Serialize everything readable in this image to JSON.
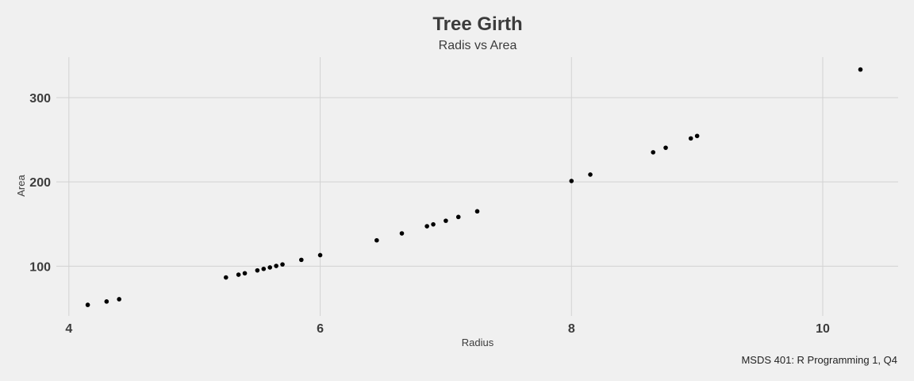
{
  "chart_data": {
    "type": "scatter",
    "title": "Tree Girth",
    "subtitle": "Radis vs Area",
    "xlabel": "Radius",
    "ylabel": "Area",
    "caption": "MSDS 401: R Programming 1, Q4",
    "xlim": [
      3.9,
      10.6
    ],
    "ylim": [
      41,
      348
    ],
    "x_ticks": [
      4,
      6,
      8,
      10
    ],
    "y_ticks": [
      100,
      200,
      300
    ],
    "grid": true,
    "point_color": "#000000",
    "points": [
      {
        "x": 4.15,
        "y": 54.1
      },
      {
        "x": 4.3,
        "y": 58.1
      },
      {
        "x": 4.4,
        "y": 60.8
      },
      {
        "x": 5.25,
        "y": 86.6
      },
      {
        "x": 5.35,
        "y": 89.9
      },
      {
        "x": 5.4,
        "y": 91.6
      },
      {
        "x": 5.5,
        "y": 95.0
      },
      {
        "x": 5.55,
        "y": 96.8
      },
      {
        "x": 5.6,
        "y": 98.5
      },
      {
        "x": 5.65,
        "y": 100.3
      },
      {
        "x": 5.7,
        "y": 102.1
      },
      {
        "x": 5.85,
        "y": 107.5
      },
      {
        "x": 6.0,
        "y": 113.1
      },
      {
        "x": 6.45,
        "y": 130.7
      },
      {
        "x": 6.65,
        "y": 138.9
      },
      {
        "x": 6.85,
        "y": 147.4
      },
      {
        "x": 6.9,
        "y": 149.6
      },
      {
        "x": 7.0,
        "y": 153.9
      },
      {
        "x": 7.1,
        "y": 158.4
      },
      {
        "x": 7.25,
        "y": 165.1
      },
      {
        "x": 8.0,
        "y": 201.1
      },
      {
        "x": 8.15,
        "y": 208.7
      },
      {
        "x": 8.65,
        "y": 235.1
      },
      {
        "x": 8.75,
        "y": 240.5
      },
      {
        "x": 8.95,
        "y": 251.6
      },
      {
        "x": 9.0,
        "y": 254.5
      },
      {
        "x": 10.3,
        "y": 333.3
      }
    ]
  }
}
